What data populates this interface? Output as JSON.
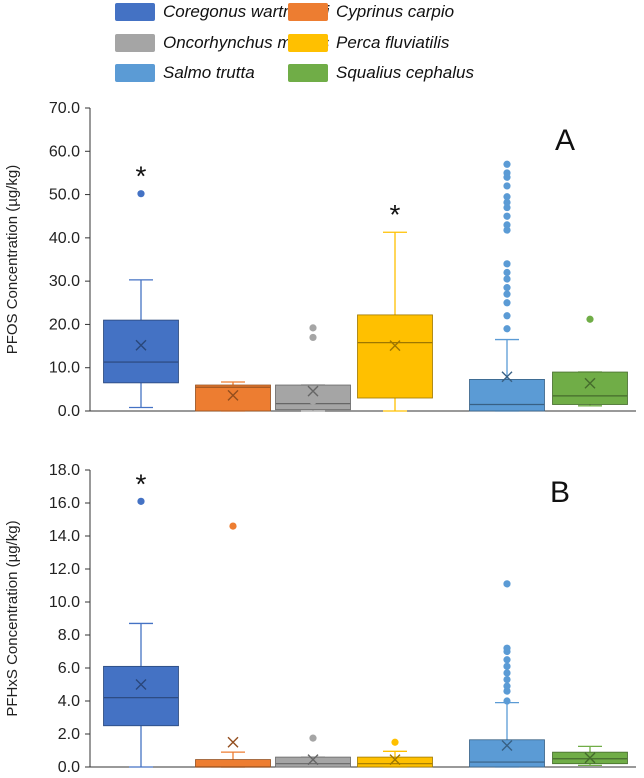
{
  "legend": [
    {
      "label": "Coregonus wartmanni",
      "color": "#4472c4"
    },
    {
      "label": "Cyprinus carpio",
      "color": "#ed7d31"
    },
    {
      "label": "Oncorhynchus mykiss",
      "color": "#a5a5a5"
    },
    {
      "label": "Perca fluviatilis",
      "color": "#ffc000"
    },
    {
      "label": "Salmo trutta",
      "color": "#5b9bd5"
    },
    {
      "label": "Squalius cephalus",
      "color": "#70ad47"
    }
  ],
  "chart_data": [
    {
      "type": "box",
      "panel_label": "A",
      "ylabel": "PFOS Concentration (µg/kg)",
      "ylim": [
        0,
        70
      ],
      "ytick_labels": [
        "0.0",
        "10.0",
        "20.0",
        "30.0",
        "40.0",
        "50.0",
        "60.0",
        "70.0"
      ],
      "series": [
        {
          "name": "Coregonus wartmanni",
          "min": 0.8,
          "q1": 6.5,
          "median": 11.3,
          "q3": 21.0,
          "max": 30.3,
          "mean": 15.2,
          "outliers": [
            50.2
          ],
          "significant": true
        },
        {
          "name": "Cyprinus carpio",
          "min": 0.0,
          "q1": 0.0,
          "median": 5.5,
          "q3": 6.0,
          "max": 6.7,
          "mean": 3.6,
          "outliers": [],
          "significant": false
        },
        {
          "name": "Oncorhynchus mykiss",
          "min": 0.0,
          "q1": 0.3,
          "median": 1.7,
          "q3": 6.0,
          "max": 6.0,
          "mean": 4.6,
          "outliers": [
            17.0,
            19.2,
            2.3
          ],
          "significant": false
        },
        {
          "name": "Perca fluviatilis",
          "min": 0.0,
          "q1": 3.0,
          "median": 15.8,
          "q3": 22.2,
          "max": 41.3,
          "mean": 15.1,
          "outliers": [],
          "significant": true
        },
        {
          "name": "Salmo trutta",
          "min": 0.0,
          "q1": 0.0,
          "median": 1.5,
          "q3": 7.3,
          "max": 16.5,
          "mean": 7.9,
          "outliers": [
            19.0,
            22.0,
            25.0,
            27.0,
            28.5,
            30.5,
            32.0,
            34.0,
            41.8,
            43.0,
            45.0,
            47.0,
            48.2,
            49.5,
            52.0,
            54.0,
            55.0,
            57.0
          ],
          "significant": false
        },
        {
          "name": "Squalius cephalus",
          "min": 1.2,
          "q1": 1.5,
          "median": 3.5,
          "q3": 9.0,
          "max": 9.0,
          "mean": 6.4,
          "outliers": [
            21.2
          ],
          "significant": false
        }
      ]
    },
    {
      "type": "box",
      "panel_label": "B",
      "ylabel": "PFHxS Concentration (µg/kg)",
      "ylim": [
        0,
        18
      ],
      "ytick_labels": [
        "0.0",
        "2.0",
        "4.0",
        "6.0",
        "8.0",
        "10.0",
        "12.0",
        "14.0",
        "16.0",
        "18.0"
      ],
      "series": [
        {
          "name": "Coregonus wartmanni",
          "min": 0.0,
          "q1": 2.5,
          "median": 4.2,
          "q3": 6.1,
          "max": 8.7,
          "mean": 5.0,
          "outliers": [
            16.1
          ],
          "significant": true
        },
        {
          "name": "Cyprinus carpio",
          "min": 0.0,
          "q1": 0.0,
          "median": 0.0,
          "q3": 0.45,
          "max": 0.9,
          "mean": 1.5,
          "outliers": [
            14.6
          ],
          "significant": false
        },
        {
          "name": "Oncorhynchus mykiss",
          "min": 0.0,
          "q1": 0.0,
          "median": 0.2,
          "q3": 0.6,
          "max": 0.6,
          "mean": 0.45,
          "outliers": [
            1.75
          ],
          "significant": false
        },
        {
          "name": "Perca fluviatilis",
          "min": 0.0,
          "q1": 0.0,
          "median": 0.2,
          "q3": 0.6,
          "max": 0.95,
          "mean": 0.45,
          "outliers": [
            1.5
          ],
          "significant": false
        },
        {
          "name": "Salmo trutta",
          "min": 0.0,
          "q1": 0.0,
          "median": 0.3,
          "q3": 1.65,
          "max": 3.9,
          "mean": 1.3,
          "outliers": [
            4.0,
            4.6,
            4.9,
            5.3,
            5.7,
            6.1,
            6.5,
            7.0,
            7.2,
            11.1
          ],
          "significant": false
        },
        {
          "name": "Squalius cephalus",
          "min": 0.1,
          "q1": 0.2,
          "median": 0.5,
          "q3": 0.9,
          "max": 1.25,
          "mean": 0.55,
          "outliers": [],
          "significant": false
        }
      ]
    }
  ]
}
